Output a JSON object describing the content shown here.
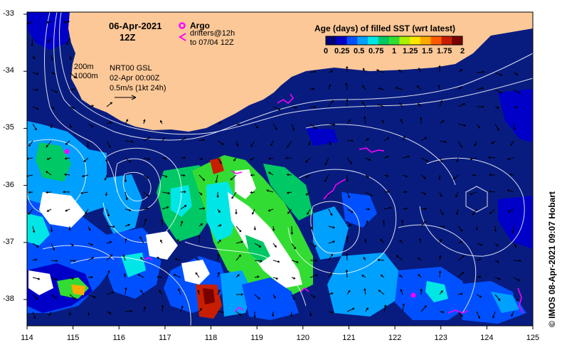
{
  "annotations": {
    "date": "06-Apr-2021",
    "time": "12Z",
    "argo_label": "Argo",
    "drifters_label": "drifters@12h",
    "drifters_period": "to 07/04 12Z",
    "isobath_200": "200m",
    "isobath_1000": "1000m",
    "model": "NRT00 GSL",
    "model_time": "02-Apr 00:00Z",
    "velocity_scale": "0.5m/s (1kt 24h)"
  },
  "colorbar": {
    "title": "Age (days) of filled SST (wrt latest)",
    "labels": [
      "0",
      "0.25",
      "0.5",
      "0.75",
      "1",
      "1.25",
      "1.5",
      "1.75",
      "2"
    ],
    "colors": [
      "#000078",
      "#0000c8",
      "#0050ff",
      "#00a0ff",
      "#00e6e6",
      "#00c864",
      "#32dc32",
      "#aaf000",
      "#ffe600",
      "#ffaa00",
      "#ff5a00",
      "#c81e00",
      "#780000"
    ]
  },
  "axes": {
    "x_ticks": [
      "114",
      "115",
      "116",
      "117",
      "118",
      "119",
      "120",
      "121",
      "122",
      "123",
      "124",
      "125"
    ],
    "y_ticks": [
      "-33",
      "-34",
      "-35",
      "-36",
      "-37",
      "-38"
    ]
  },
  "credit": "© IMOS 08-Apr-2021 09:07 Hobart",
  "colors": {
    "land": "#fdc897",
    "ocean": "#0a1f8a",
    "deep": "#07166e",
    "argo": "#ff00ff",
    "contour": "#ffffff"
  }
}
